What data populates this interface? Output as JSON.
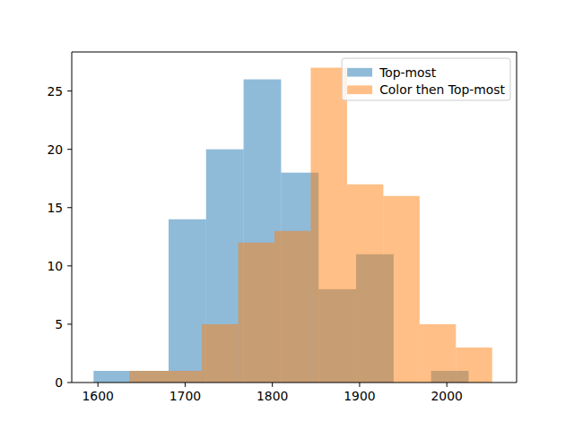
{
  "chart_data": {
    "type": "histogram",
    "series": [
      {
        "name": "Top-most",
        "color": "#1f77b4",
        "bins": [
          1595,
          1638,
          1681,
          1724,
          1767,
          1810,
          1853,
          1896,
          1939,
          1982,
          2025
        ],
        "values": [
          1,
          1,
          14,
          20,
          26,
          18,
          8,
          11,
          0,
          1
        ]
      },
      {
        "name": "Color then Top-most",
        "color": "#ff7f0e",
        "bins": [
          1636,
          1677.6,
          1719.2,
          1760.8,
          1802.4,
          1844,
          1885.6,
          1927.2,
          1968.8,
          2010.4,
          2052
        ],
        "values": [
          1,
          1,
          5,
          12,
          13,
          27,
          17,
          16,
          5,
          3
        ]
      }
    ],
    "xlim": [
      1570,
      2080
    ],
    "xticks": [
      1600,
      1700,
      1800,
      1900,
      2000
    ],
    "ylim": [
      0,
      28.35
    ],
    "yticks": [
      0,
      5,
      10,
      15,
      20,
      25
    ],
    "grid": false,
    "legend": "upper right"
  }
}
